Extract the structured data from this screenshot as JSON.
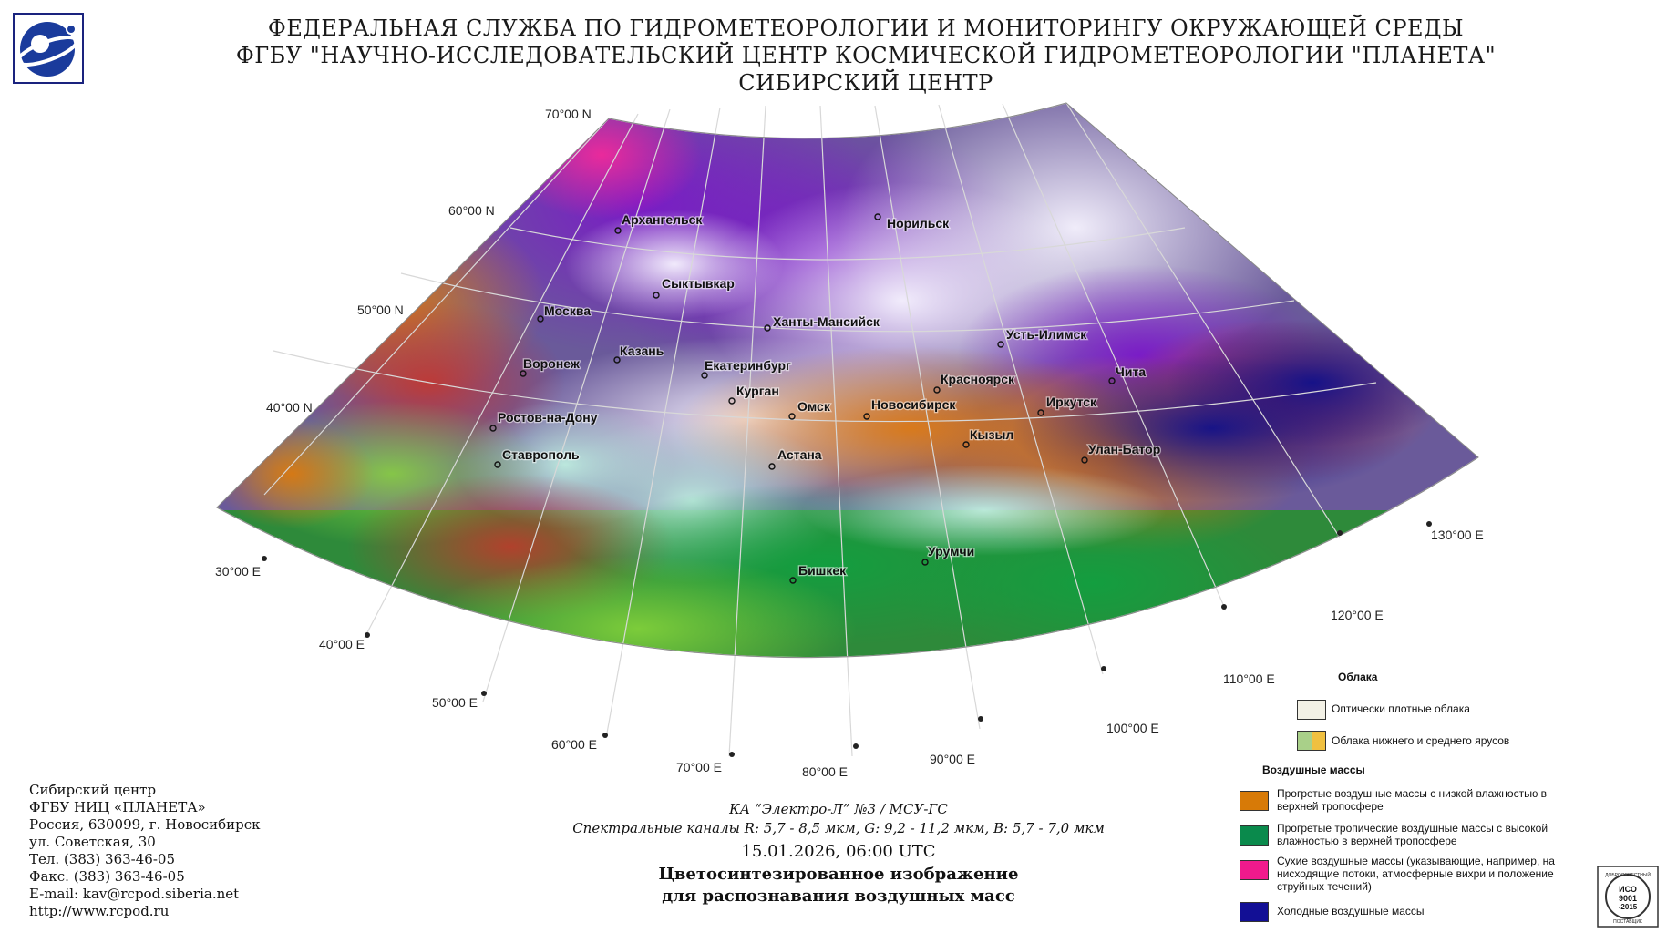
{
  "header": {
    "line1": "ФЕДЕРАЛЬНАЯ СЛУЖБА ПО ГИДРОМЕТЕОРОЛОГИИ И МОНИТОРИНГУ ОКРУЖАЮЩЕЙ СРЕДЫ",
    "line2": "ФГБУ \"НАУЧНО-ИССЛЕДОВАТЕЛЬСКИЙ ЦЕНТР КОСМИЧЕСКОЙ ГИДРОМЕТЕОРОЛОГИИ \"ПЛАНЕТА\"",
    "line3": "СИБИРСКИЙ ЦЕНТР"
  },
  "map": {
    "lat_labels": [
      "70°00 N",
      "60°00 N",
      "50°00 N",
      "40°00 N"
    ],
    "lon_labels": [
      "30°00 E",
      "40°00 E",
      "50°00 E",
      "60°00 E",
      "70°00 E",
      "80°00 E",
      "90°00 E",
      "100°00 E",
      "110°00 E",
      "120°00 E",
      "130°00 E"
    ],
    "cities": [
      "Архангельск",
      "Норильск",
      "Сыктывкар",
      "Москва",
      "Ханты-Мансийск",
      "Казань",
      "Усть-Илимск",
      "Воронеж",
      "Екатеринбург",
      "Чита",
      "Красноярск",
      "Курган",
      "Омск",
      "Новосибирск",
      "Иркутск",
      "Ростов-на-Дону",
      "Кызыл",
      "Улан-Батор",
      "Ставрополь",
      "Астана",
      "Урумчи",
      "Бишкек"
    ]
  },
  "legend": {
    "clouds_title": "Облака",
    "clouds_items": [
      {
        "label": "Оптически плотные облака",
        "colors": [
          "#f3f1e6"
        ]
      },
      {
        "label": "Облака нижнего и среднего ярусов",
        "colors": [
          "#a9d089",
          "#f0c040"
        ]
      }
    ],
    "air_title": "Воздушные массы",
    "air_items": [
      {
        "label": "Прогретые воздушные массы с низкой влажностью в верхней тропосфере",
        "color": "#d77a07"
      },
      {
        "label": "Прогретые тропичеcкие воздушные массы с высокой влажностью в верхней тропосфере",
        "color": "#0a8a4c"
      },
      {
        "label": "Сухие воздушные массы (указывающие, например, на нисходящие потоки, атмосферные вихри и положение струйных течений)",
        "color": "#f01a8c"
      },
      {
        "label": "Холодные воздушные массы",
        "color": "#120f95"
      }
    ]
  },
  "address": [
    "Сибирский центр",
    "ФГБУ НИЦ «ПЛАНЕТА»",
    "Россия, 630099, г. Новосибирск",
    "ул. Советская, 30",
    "Тел. (383) 363-46-05",
    "Факс. (383) 363-46-05",
    "E-mail: kav@rcpod.siberia.net",
    "http://www.rcpod.ru"
  ],
  "caption": {
    "satellite": "КА “Электро-Л” №3 / МСУ-ГС",
    "channels": "Спектральные каналы R: 5,7 - 8,5 мкм, G: 9,2 - 11,2 мкм, B: 5,7 - 7,0 мкм",
    "datetime": "15.01.2026, 06:00 UTC",
    "title1": "Цветосинтезированное изображение",
    "title2": "для распознавания воздушных масс"
  },
  "iso_badge": {
    "top": "ДОБРОСОВЕСТНЫЙ",
    "l1": "ИСО",
    "l2": "9001",
    "l3": "-2015",
    "bottom": "ПОСТАВЩИК"
  }
}
